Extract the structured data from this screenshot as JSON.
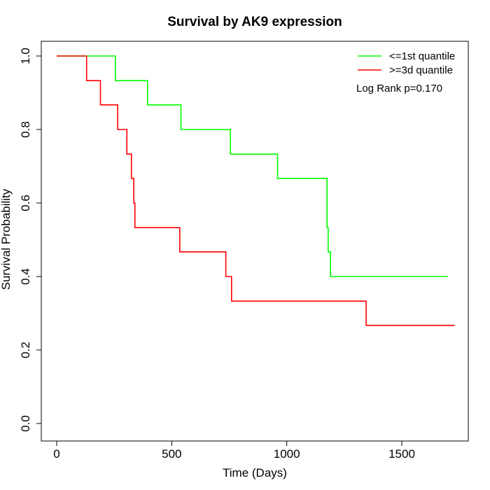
{
  "chart_data": {
    "type": "line",
    "title": "Survival by AK9 expression",
    "xlabel": "Time (Days)",
    "ylabel": "Survival Probability",
    "xlim": [
      0,
      1800
    ],
    "ylim": [
      0,
      1.0
    ],
    "x_ticks": [
      0,
      500,
      1000,
      1500
    ],
    "x_tick_labels": [
      "0",
      "500",
      "1000",
      "1500"
    ],
    "y_ticks": [
      0,
      0.2,
      0.4,
      0.6,
      0.8,
      1.0
    ],
    "y_tick_labels": [
      "0.0",
      "0.2",
      "0.4",
      "0.6",
      "0.8",
      "1.0"
    ],
    "grid": false,
    "step": true,
    "legend_position": "top-right",
    "annotation": "Log Rank p=0.170",
    "series": [
      {
        "name": "<=1st quantile",
        "color": "#00ff00",
        "x": [
          0,
          255,
          395,
          540,
          755,
          960,
          1175,
          1180,
          1190,
          1700
        ],
        "y": [
          1.0,
          0.933,
          0.867,
          0.8,
          0.733,
          0.667,
          0.533,
          0.467,
          0.4,
          0.4
        ]
      },
      {
        "name": ">=3d quantile",
        "color": "#ff0000",
        "x": [
          0,
          130,
          190,
          265,
          305,
          325,
          335,
          340,
          535,
          735,
          760,
          1345,
          1730
        ],
        "y": [
          1.0,
          0.933,
          0.867,
          0.8,
          0.733,
          0.667,
          0.6,
          0.533,
          0.467,
          0.4,
          0.333,
          0.267,
          0.267
        ]
      }
    ]
  }
}
